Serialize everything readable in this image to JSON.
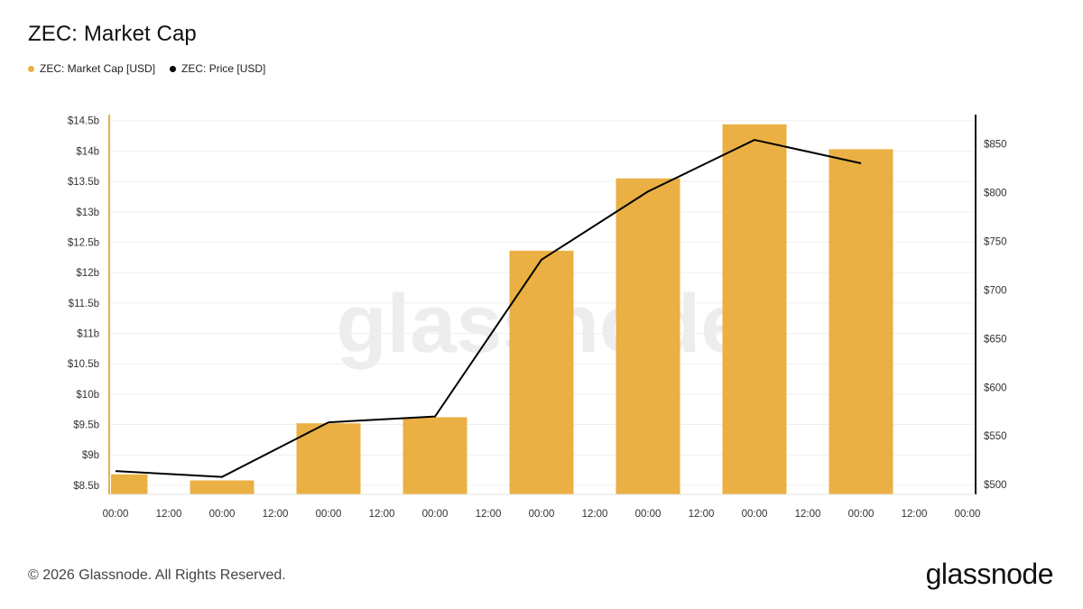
{
  "title": "ZEC: Market Cap",
  "legend": [
    {
      "label": "ZEC: Market Cap [USD]",
      "color": "#ebb043"
    },
    {
      "label": "ZEC: Price [USD]",
      "color": "#000000"
    }
  ],
  "watermark": "glassnode",
  "footer": "© 2026 Glassnode. All Rights Reserved.",
  "brand": "glassnode",
  "chart_data": {
    "type": "bar",
    "bar_color": "#ebb043",
    "line_color": "#000000",
    "x_ticks": [
      "00:00",
      "12:00",
      "00:00",
      "12:00",
      "00:00",
      "12:00",
      "00:00",
      "12:00",
      "00:00",
      "12:00",
      "00:00",
      "12:00",
      "00:00",
      "12:00",
      "00:00",
      "12:00",
      "00:00"
    ],
    "y_left_ticks": [
      "$8.5b",
      "$9b",
      "$9.5b",
      "$10b",
      "$10.5b",
      "$11b",
      "$11.5b",
      "$12b",
      "$12.5b",
      "$13b",
      "$13.5b",
      "$14b",
      "$14.5b"
    ],
    "y_left_values": [
      8.5,
      9,
      9.5,
      10,
      10.5,
      11,
      11.5,
      12,
      12.5,
      13,
      13.5,
      14,
      14.5
    ],
    "y_left_range": [
      8.35,
      14.6
    ],
    "y_right_ticks": [
      "$500",
      "$550",
      "$600",
      "$650",
      "$700",
      "$750",
      "$800",
      "$850"
    ],
    "y_right_values": [
      500,
      550,
      600,
      650,
      700,
      750,
      800,
      850
    ],
    "y_right_range": [
      490,
      880
    ],
    "series": [
      {
        "name": "ZEC: Market Cap [USD]",
        "kind": "bar",
        "unit": "billion USD",
        "values": [
          8.68,
          8.58,
          9.52,
          9.62,
          12.36,
          13.55,
          14.44,
          14.03
        ]
      },
      {
        "name": "ZEC: Price [USD]",
        "kind": "line",
        "unit": "USD",
        "values": [
          514,
          508,
          564,
          570,
          731,
          801,
          854,
          830
        ]
      }
    ],
    "grid": true
  }
}
